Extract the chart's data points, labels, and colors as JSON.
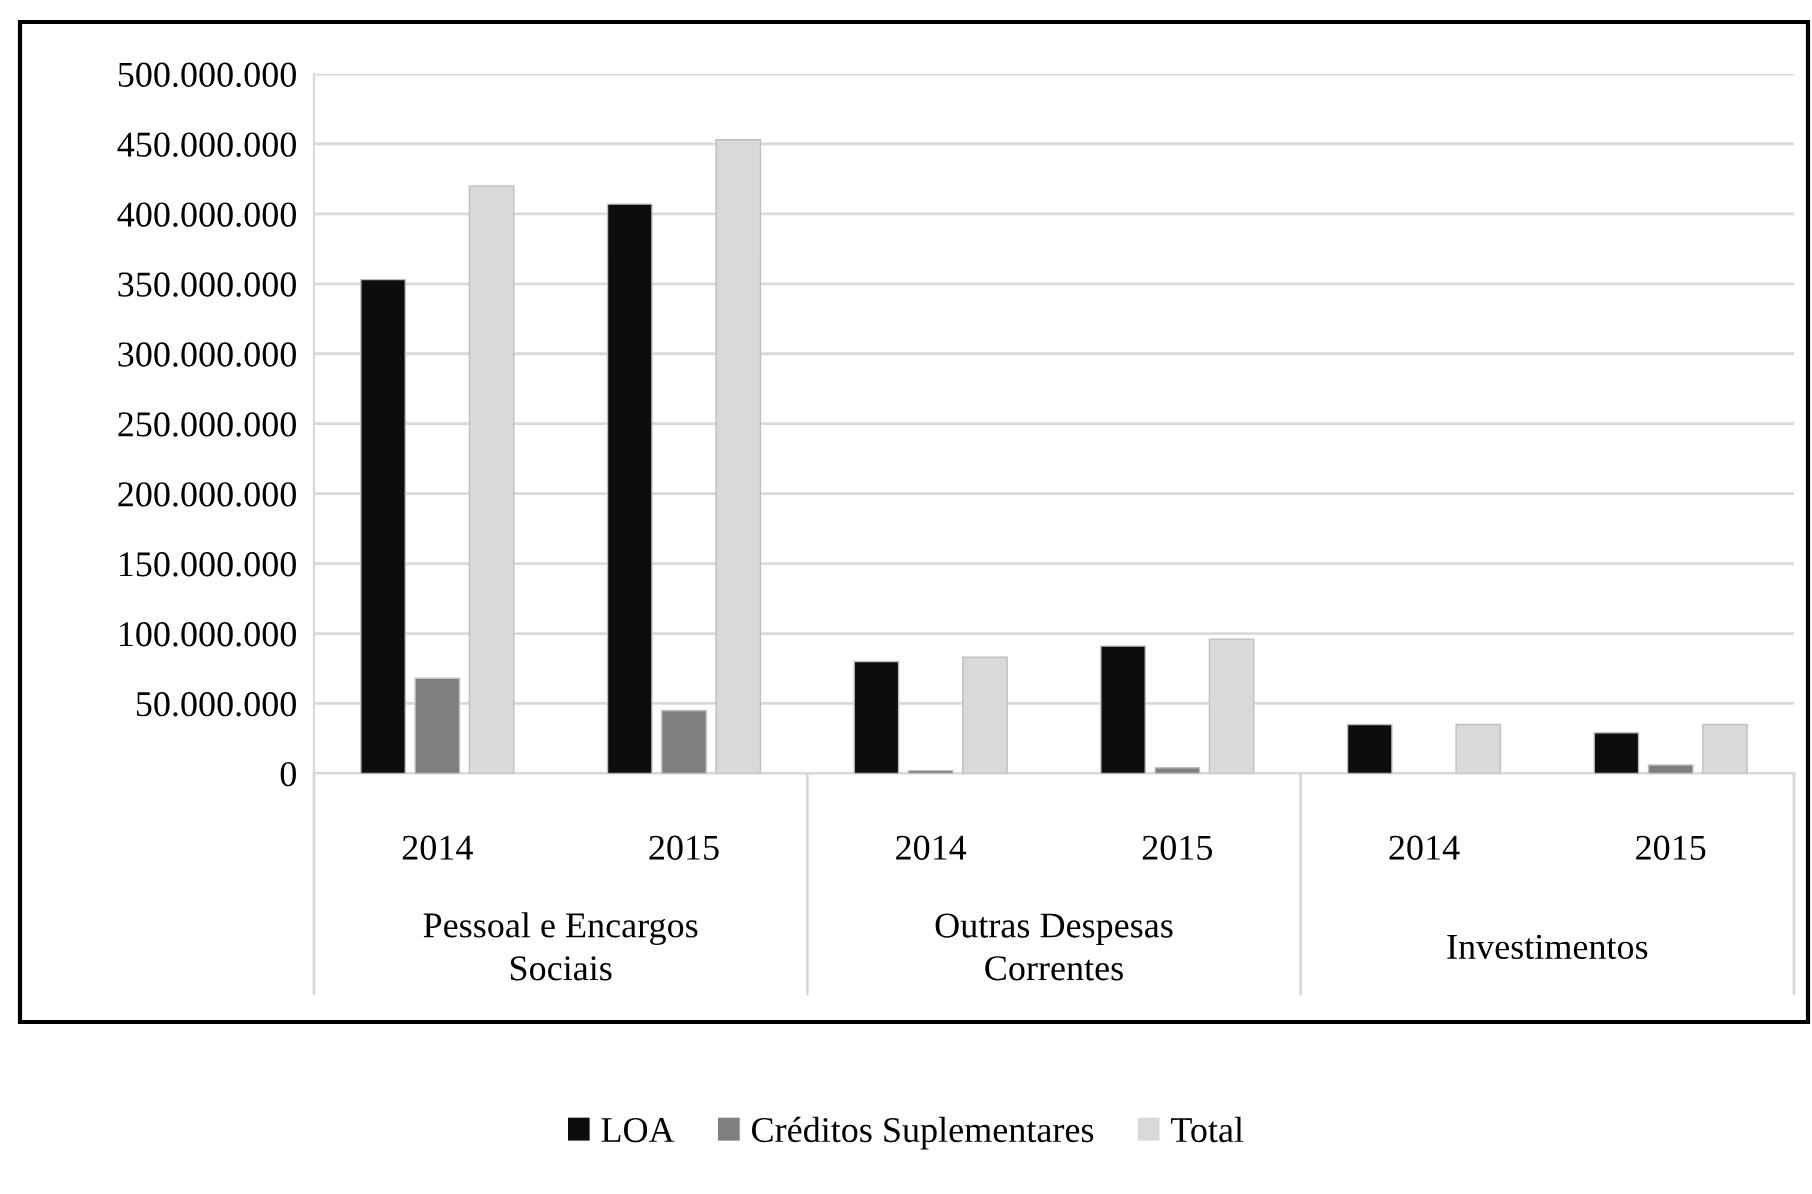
{
  "chart_data": {
    "type": "bar",
    "categories": [
      "2014",
      "2015",
      "2014",
      "2015",
      "2014",
      "2015"
    ],
    "series": [
      {
        "name": "LOA",
        "color": "#0d0d0d",
        "values": [
          353000000,
          407000000,
          80000000,
          91000000,
          35000000,
          29000000
        ]
      },
      {
        "name": "Créditos Suplementares",
        "color": "#7f7f7f",
        "values": [
          68000000,
          45000000,
          2000000,
          4000000,
          null,
          6000000
        ]
      },
      {
        "name": "Total",
        "color": "#d9d9d9",
        "values": [
          420000000,
          453000000,
          83000000,
          96000000,
          35000000,
          35000000
        ]
      }
    ],
    "annotations": [
      "Pessoal e Encargos\nSociais",
      "Outras Despesas\nCorrentes",
      "Investimentos"
    ],
    "ylim": [
      0,
      500000000
    ],
    "yticks": [
      {
        "value": 0,
        "label": "0"
      },
      {
        "value": 50000000,
        "label": "50.000.000"
      },
      {
        "value": 100000000,
        "label": "100.000.000"
      },
      {
        "value": 150000000,
        "label": "150.000.000"
      },
      {
        "value": 200000000,
        "label": "200.000.000"
      },
      {
        "value": 250000000,
        "label": "250.000.000"
      },
      {
        "value": 300000000,
        "label": "300.000.000"
      },
      {
        "value": 350000000,
        "label": "350.000.000"
      },
      {
        "value": 400000000,
        "label": "400.000.000"
      },
      {
        "value": 450000000,
        "label": "450.000.000"
      },
      {
        "value": 500000000,
        "label": "500.000.000"
      }
    ],
    "grid": "y",
    "legend": "bottom"
  }
}
